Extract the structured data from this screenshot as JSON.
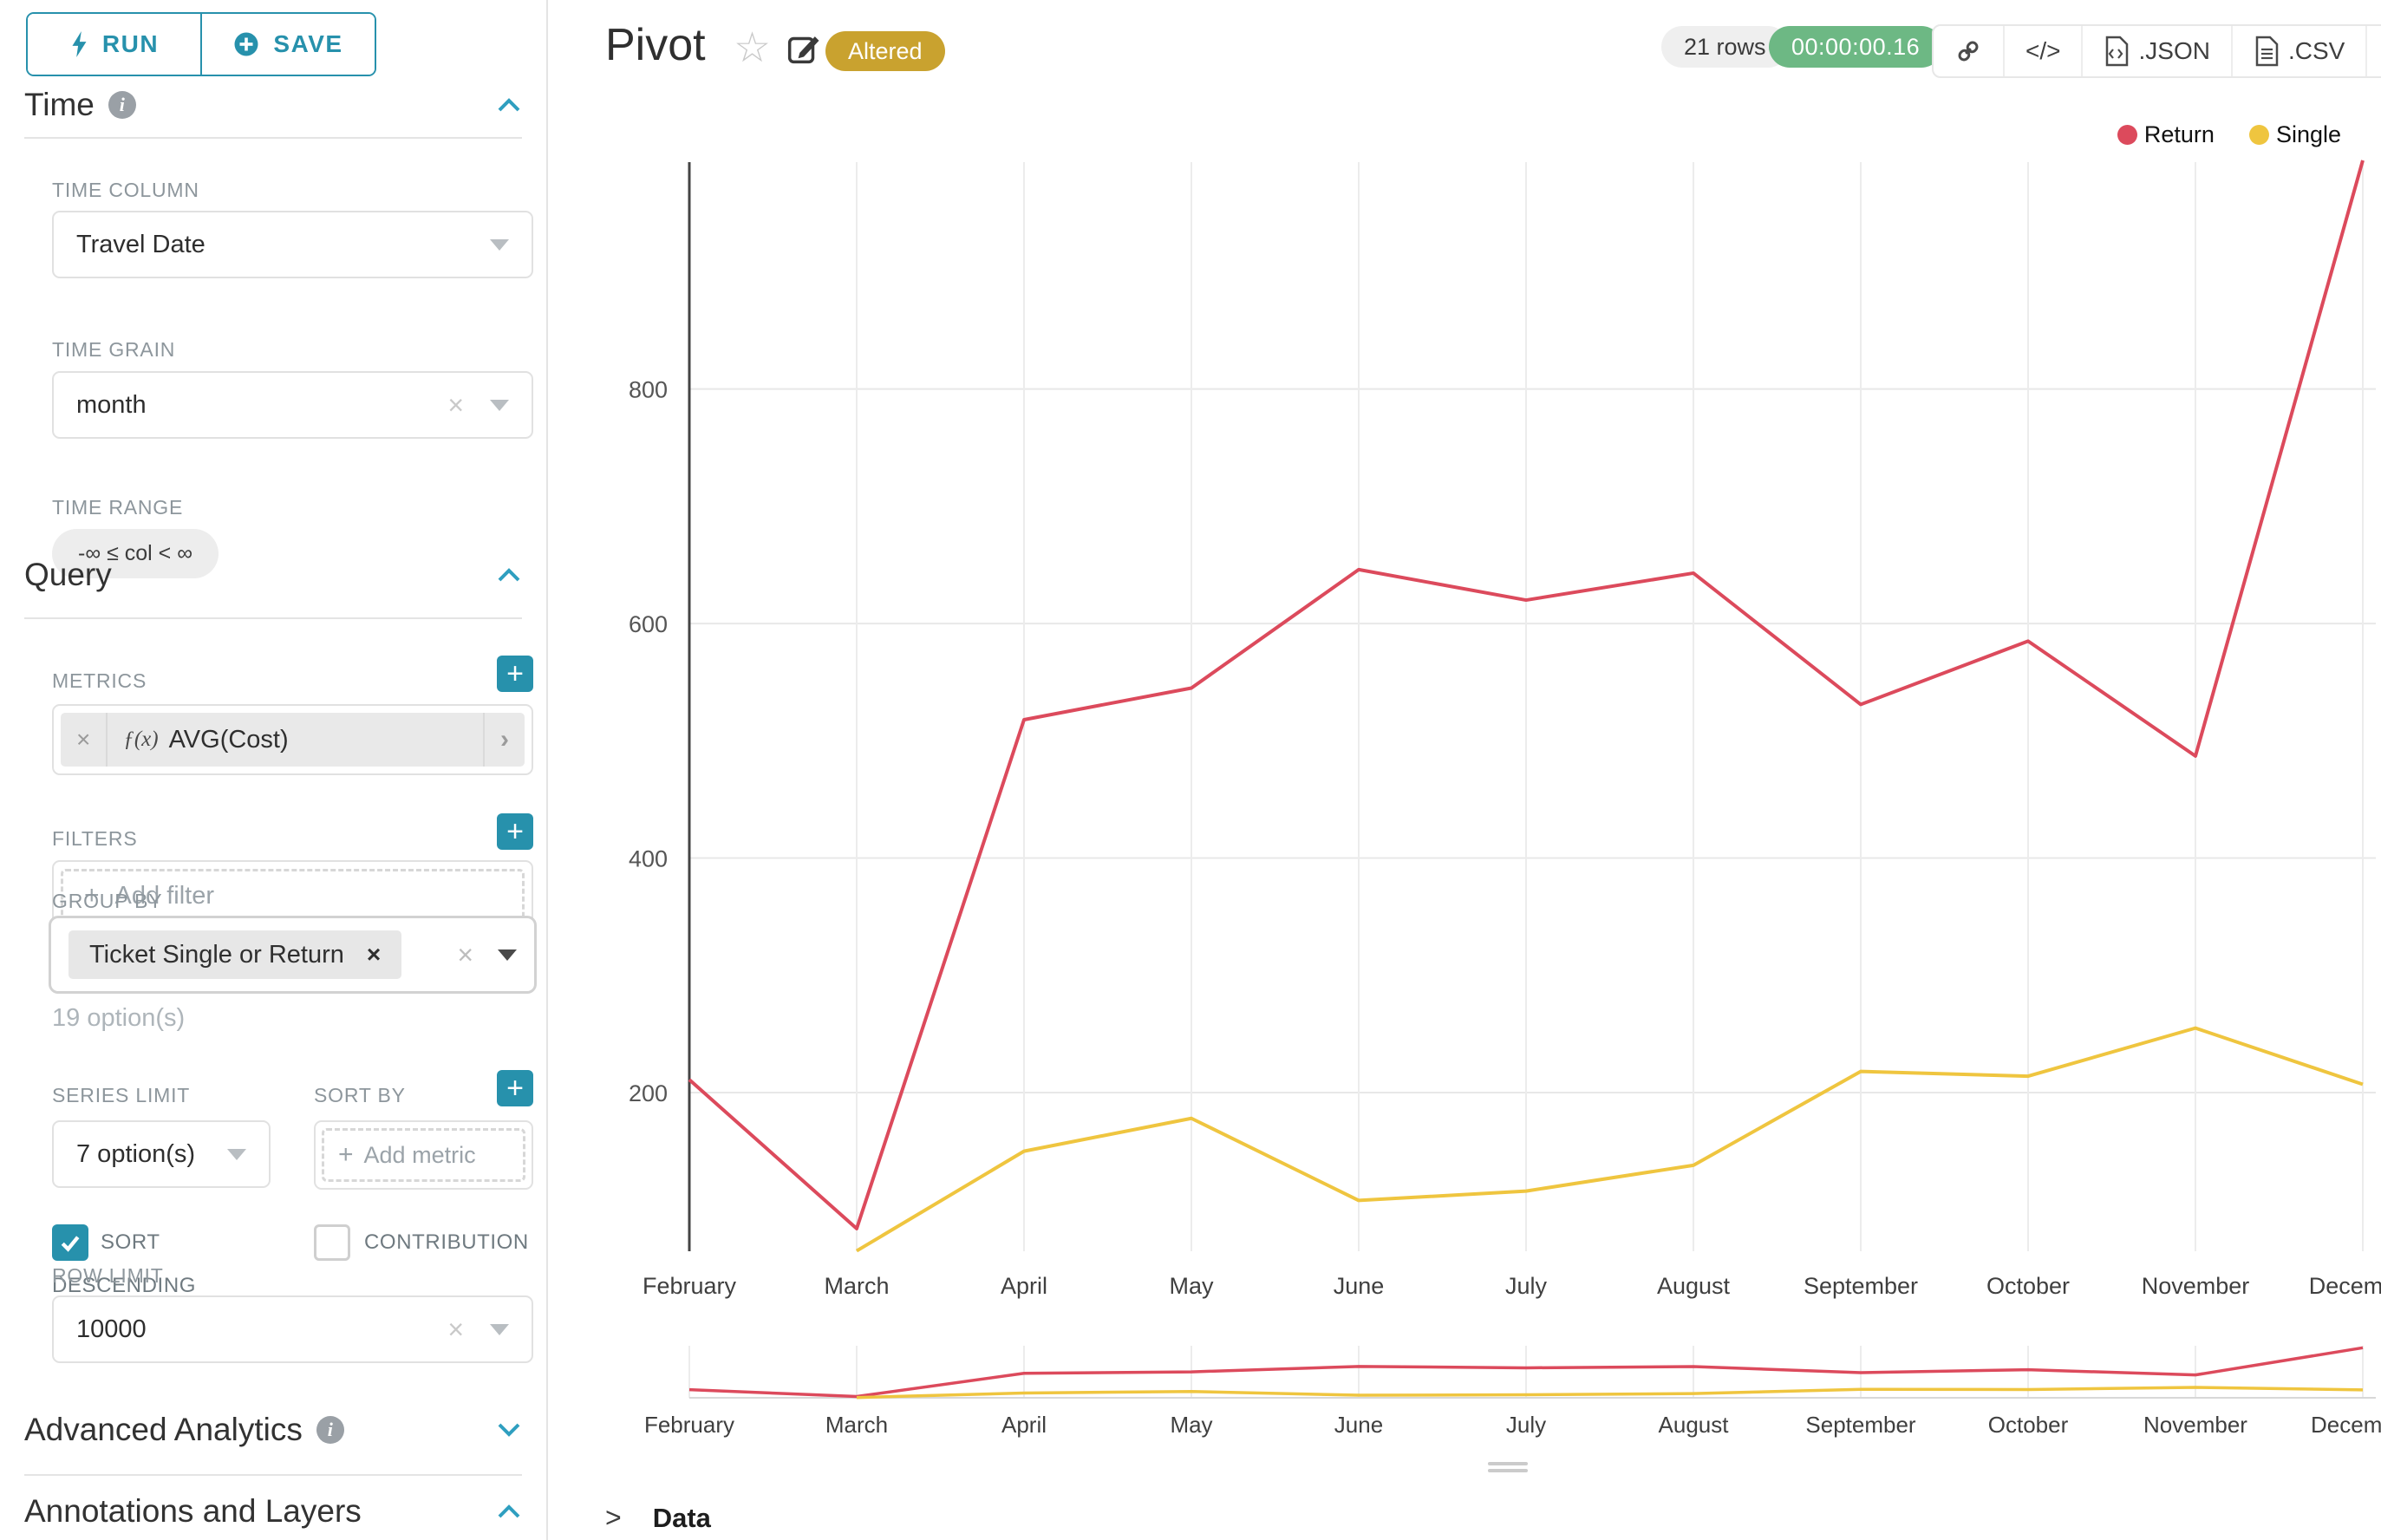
{
  "accent": "#2791ac",
  "run_save": {
    "run_label": "RUN",
    "save_label": "SAVE"
  },
  "sidebar": {
    "time": {
      "title": "Time",
      "time_column_label": "TIME COLUMN",
      "time_column_value": "Travel Date",
      "time_grain_label": "TIME GRAIN",
      "time_grain_value": "month",
      "time_range_label": "TIME RANGE",
      "time_range_value": "-∞ ≤ col < ∞"
    },
    "query": {
      "title": "Query",
      "metrics_label": "METRICS",
      "metric_fx": "ƒ(x)",
      "metric_value": "AVG(Cost)",
      "filters_label": "FILTERS",
      "add_filter_label": "Add filter",
      "group_by_label": "GROUP BY",
      "group_by_value": "Ticket Single or Return",
      "options_hint": "19 option(s)",
      "series_limit_label": "SERIES LIMIT",
      "series_limit_value": "7 option(s)",
      "sort_by_label": "SORT BY",
      "add_metric_label": "Add metric",
      "sort_descending_label": "SORT DESCENDING",
      "contribution_label": "CONTRIBUTION",
      "row_limit_label": "ROW LIMIT",
      "row_limit_value": "10000"
    },
    "advanced_analytics_title": "Advanced Analytics",
    "annotations_title": "Annotations and Layers"
  },
  "header": {
    "title": "Pivot",
    "altered_badge": "Altered",
    "row_count": "21 rows",
    "query_timer": "00:00:00.16",
    "code_icon_label": "</>",
    "json_label": ".JSON",
    "csv_label": ".CSV"
  },
  "data_panel": {
    "title": "Data"
  },
  "chart_data": {
    "type": "line",
    "title": "Pivot",
    "categories": [
      "February",
      "March",
      "April",
      "May",
      "June",
      "July",
      "August",
      "September",
      "October",
      "November",
      "December"
    ],
    "series": [
      {
        "name": "Return",
        "color": "#dc4a5c",
        "values": [
          211,
          84,
          518,
          545,
          646,
          620,
          643,
          531,
          585,
          487,
          995
        ]
      },
      {
        "name": "Single",
        "color": "#efc53f",
        "values": [
          null,
          65,
          150,
          178,
          108,
          116,
          138,
          218,
          214,
          255,
          207
        ]
      }
    ],
    "y_ticks": [
      200,
      400,
      600,
      800
    ],
    "ylim": [
      60,
      1000
    ],
    "xlabel": "",
    "ylabel": "",
    "grid": true,
    "legend_position": "top-right",
    "has_range_selector_minichart": true
  }
}
